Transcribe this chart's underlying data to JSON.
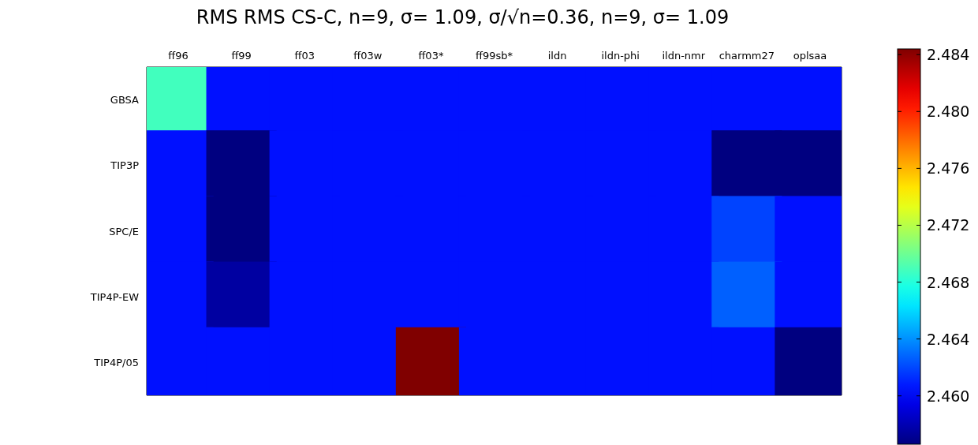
{
  "chart_data": {
    "type": "heatmap",
    "title": "RMS RMS CS-C, n=9, σ= 1.09, σ/√n=0.36, n=9, σ= 1.09",
    "categories": [
      "ff96",
      "ff99",
      "ff03",
      "ff03w",
      "ff03*",
      "ff99sb*",
      "ildn",
      "ildn-phi",
      "ildn-nmr",
      "charmm27",
      "oplsaa"
    ],
    "y_categories": [
      "GBSA",
      "TIP3P",
      "SPC/E",
      "TIP4P-EW",
      "TIP4P/05"
    ],
    "cells": [
      [
        2.4688,
        2.4605,
        2.4605,
        2.4605,
        2.4605,
        2.4605,
        2.4605,
        2.4605,
        2.4605,
        2.4605,
        2.4605
      ],
      [
        2.4605,
        2.4566,
        2.4605,
        2.4605,
        2.4605,
        2.4605,
        2.4605,
        2.4605,
        2.4605,
        2.4566,
        2.4566
      ],
      [
        2.4605,
        2.4566,
        2.4605,
        2.4605,
        2.4605,
        2.4605,
        2.4605,
        2.4605,
        2.4605,
        2.4619,
        2.4605
      ],
      [
        2.4605,
        2.4575,
        2.4605,
        2.4605,
        2.4605,
        2.4605,
        2.4605,
        2.4605,
        2.4605,
        2.4627,
        2.4605
      ],
      [
        2.4605,
        2.4605,
        2.4605,
        2.4605,
        2.4844,
        2.4605,
        2.4605,
        2.4605,
        2.4605,
        2.4605,
        2.4566
      ]
    ],
    "clim": [
      2.4566,
      2.4844
    ],
    "cticks": [
      {
        "value": 2.46,
        "label": "2.460"
      },
      2.464,
      2.468,
      2.472,
      2.476,
      {
        "value": 2.48,
        "label": "2.480"
      },
      2.484
    ]
  }
}
